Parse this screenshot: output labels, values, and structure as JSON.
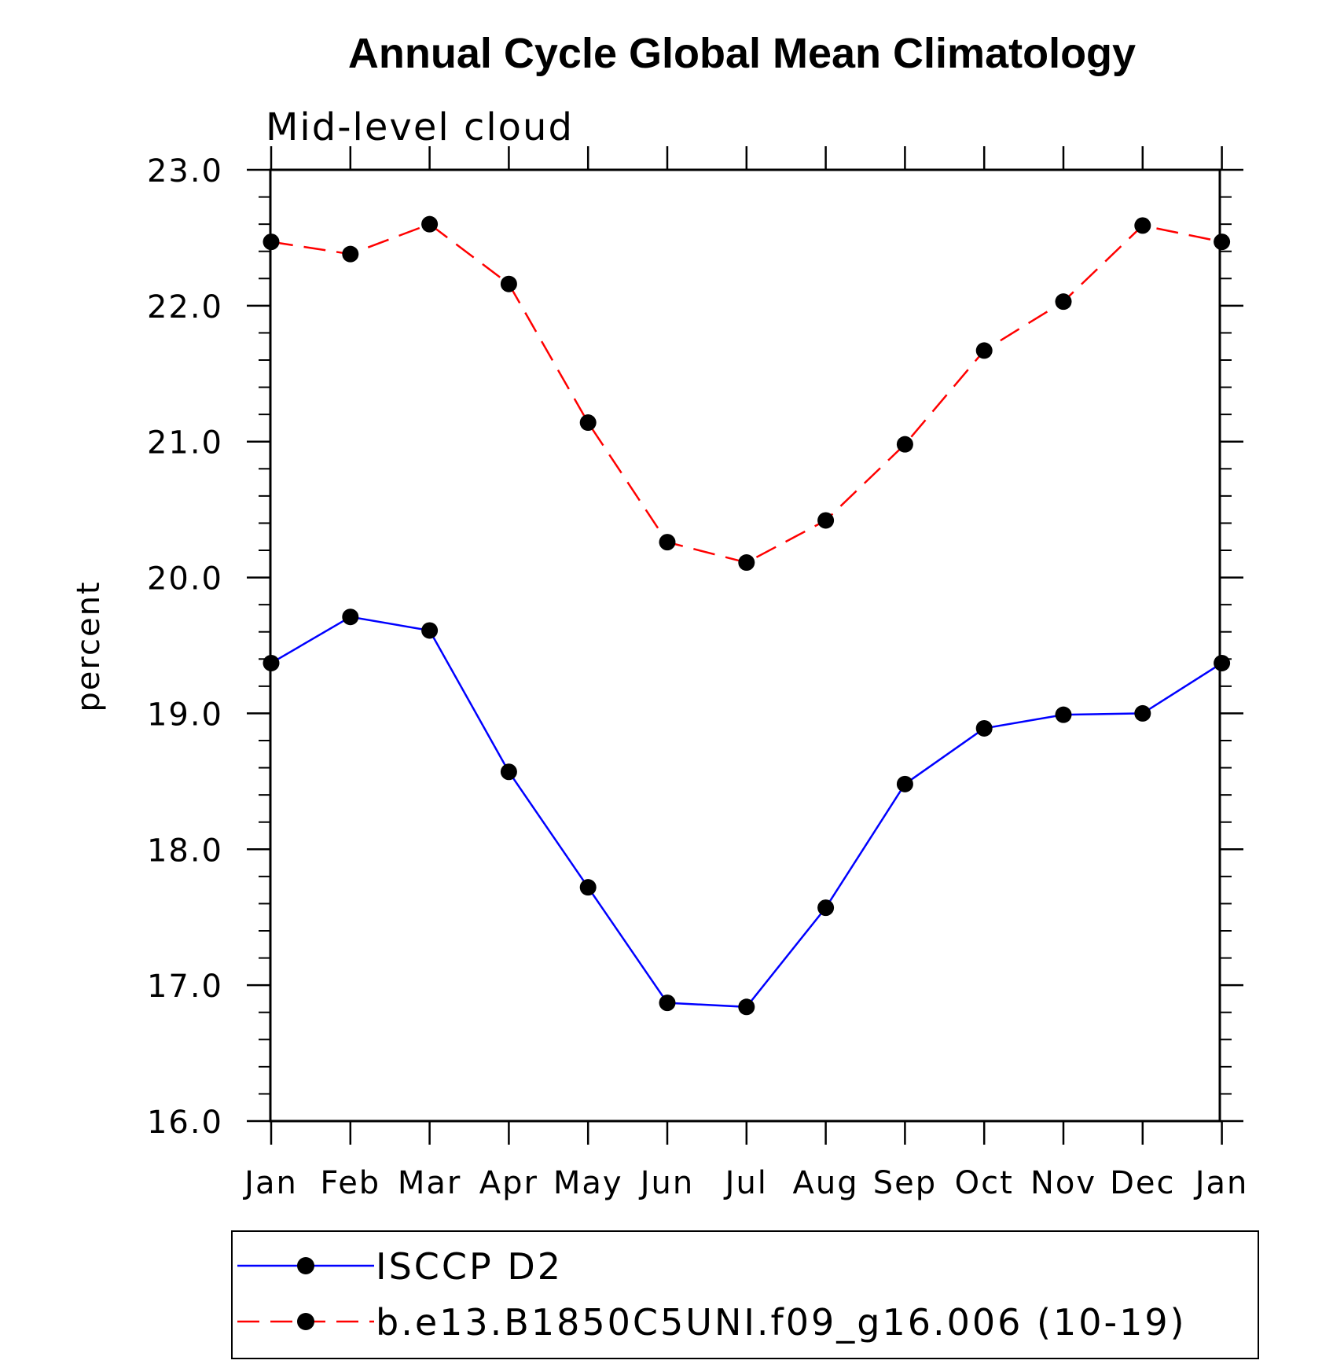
{
  "chart_data": {
    "type": "line",
    "title": "Annual Cycle Global Mean Climatology",
    "subtitle": "Mid-level cloud",
    "ylabel": "percent",
    "xlabel": "",
    "categories": [
      "Jan",
      "Feb",
      "Mar",
      "Apr",
      "May",
      "Jun",
      "Jul",
      "Aug",
      "Sep",
      "Oct",
      "Nov",
      "Dec",
      "Jan"
    ],
    "ylim": [
      16.0,
      23.0
    ],
    "yticks": [
      "16.0",
      "17.0",
      "18.0",
      "19.0",
      "20.0",
      "21.0",
      "22.0",
      "23.0"
    ],
    "grid": false,
    "legend_position": "bottom",
    "series": [
      {
        "name": "ISCCP D2",
        "color": "#0000ff",
        "line_style": "solid",
        "marker": "filled-circle",
        "values": [
          19.37,
          19.71,
          19.61,
          18.57,
          17.72,
          16.87,
          16.84,
          17.57,
          18.48,
          18.89,
          18.99,
          19.0,
          19.37
        ]
      },
      {
        "name": "b.e13.B1850C5UNI.f09_g16.006 (10-19)",
        "color": "#ff0000",
        "line_style": "dashed",
        "marker": "filled-circle",
        "values": [
          22.47,
          22.38,
          22.6,
          22.16,
          21.14,
          20.26,
          20.11,
          20.42,
          20.98,
          21.67,
          22.03,
          22.59,
          22.47
        ]
      }
    ]
  }
}
